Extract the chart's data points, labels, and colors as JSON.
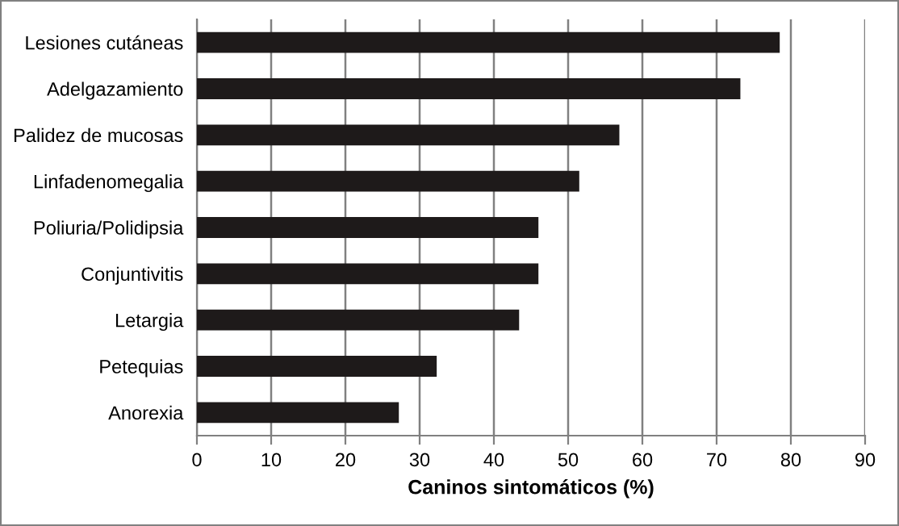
{
  "chart_data": {
    "type": "bar",
    "orientation": "horizontal",
    "xlabel": "Caninos sintomáticos (%)",
    "categories": [
      "Lesiones cutáneas",
      "Adelgazamiento",
      "Palidez de mucosas",
      "Linfadenomegalia",
      "Poliuria/Polidipsia",
      "Conjuntivitis",
      "Letargia",
      "Petequias",
      "Anorexia"
    ],
    "values": [
      78.5,
      73.2,
      56.9,
      51.5,
      46.0,
      46.0,
      43.4,
      32.3,
      27.2
    ],
    "color": "#1e1a1a",
    "xlim": [
      0,
      90
    ],
    "xticks": [
      0,
      10,
      20,
      30,
      40,
      50,
      60,
      70,
      80,
      90
    ],
    "grid": "x"
  }
}
